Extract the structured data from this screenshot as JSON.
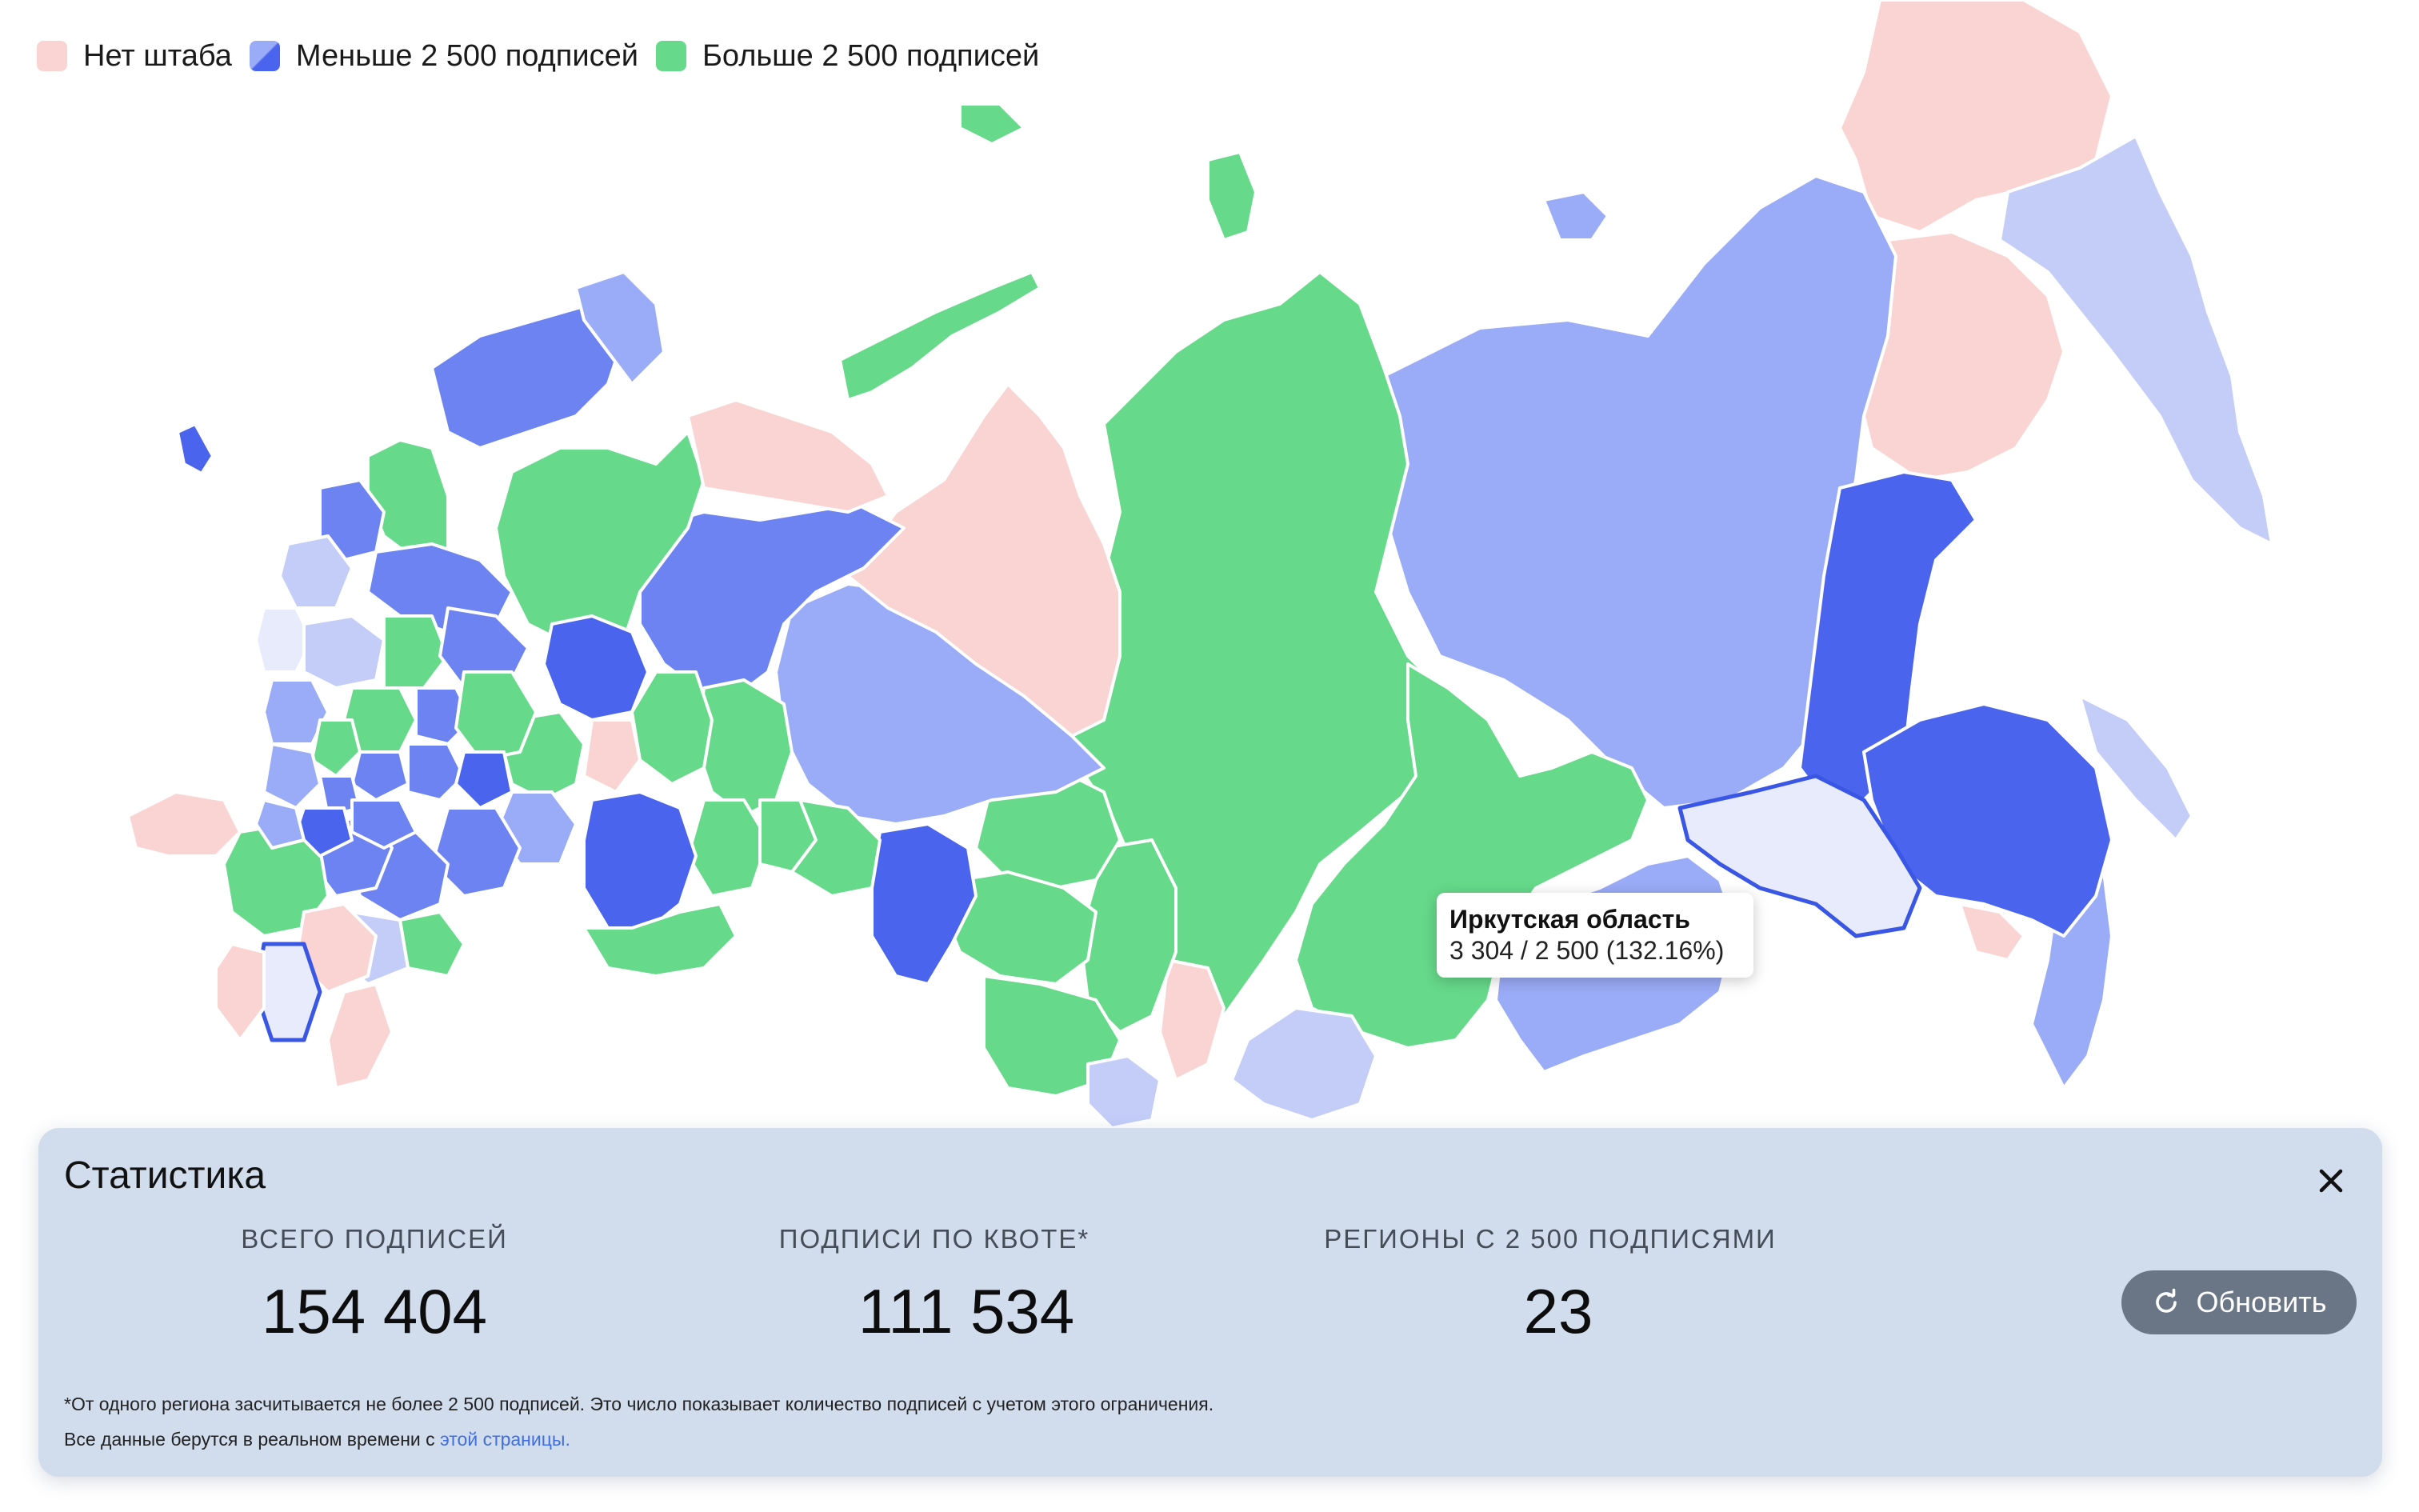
{
  "legend": [
    {
      "label": "Нет штаба",
      "color": "#f9d4d2"
    },
    {
      "label": "Меньше 2 500 подписей",
      "color": "#4a64ee"
    },
    {
      "label": "Больше 2 500 подписей",
      "color": "#66d98a"
    }
  ],
  "colors": {
    "no_hq": "#f9d4d2",
    "less_darkest": "#4a64ee",
    "less_dark": "#6c83f1",
    "less_medium": "#9aabf7",
    "less_light": "#c3cdf8",
    "less_faint": "#e7ebfc",
    "more": "#66d98a"
  },
  "tooltip": {
    "region": "Иркутская область",
    "value_text": "3 304 / 2 500 (132.16%)",
    "signatures": 3304,
    "quota": 2500
  },
  "stats": {
    "title": "Статистика",
    "items": [
      {
        "label": "ВСЕГО ПОДПИСЕЙ",
        "value": "154 404"
      },
      {
        "label": "ПОДПИСИ ПО КВОТЕ*",
        "value": "111 534"
      },
      {
        "label": "РЕГИОНЫ С 2 500 ПОДПИСЯМИ",
        "value": "23"
      }
    ],
    "refresh_label": "Обновить",
    "footnote": "*От одного региона засчитывается не более 2 500 подписей. Это число показывает количество подписей с учетом этого ограничения.",
    "source_prefix": "Все данные берутся в реальном времени с ",
    "source_link": "этой страницы."
  },
  "icons": {
    "close": "close-icon",
    "refresh": "refresh-icon"
  }
}
